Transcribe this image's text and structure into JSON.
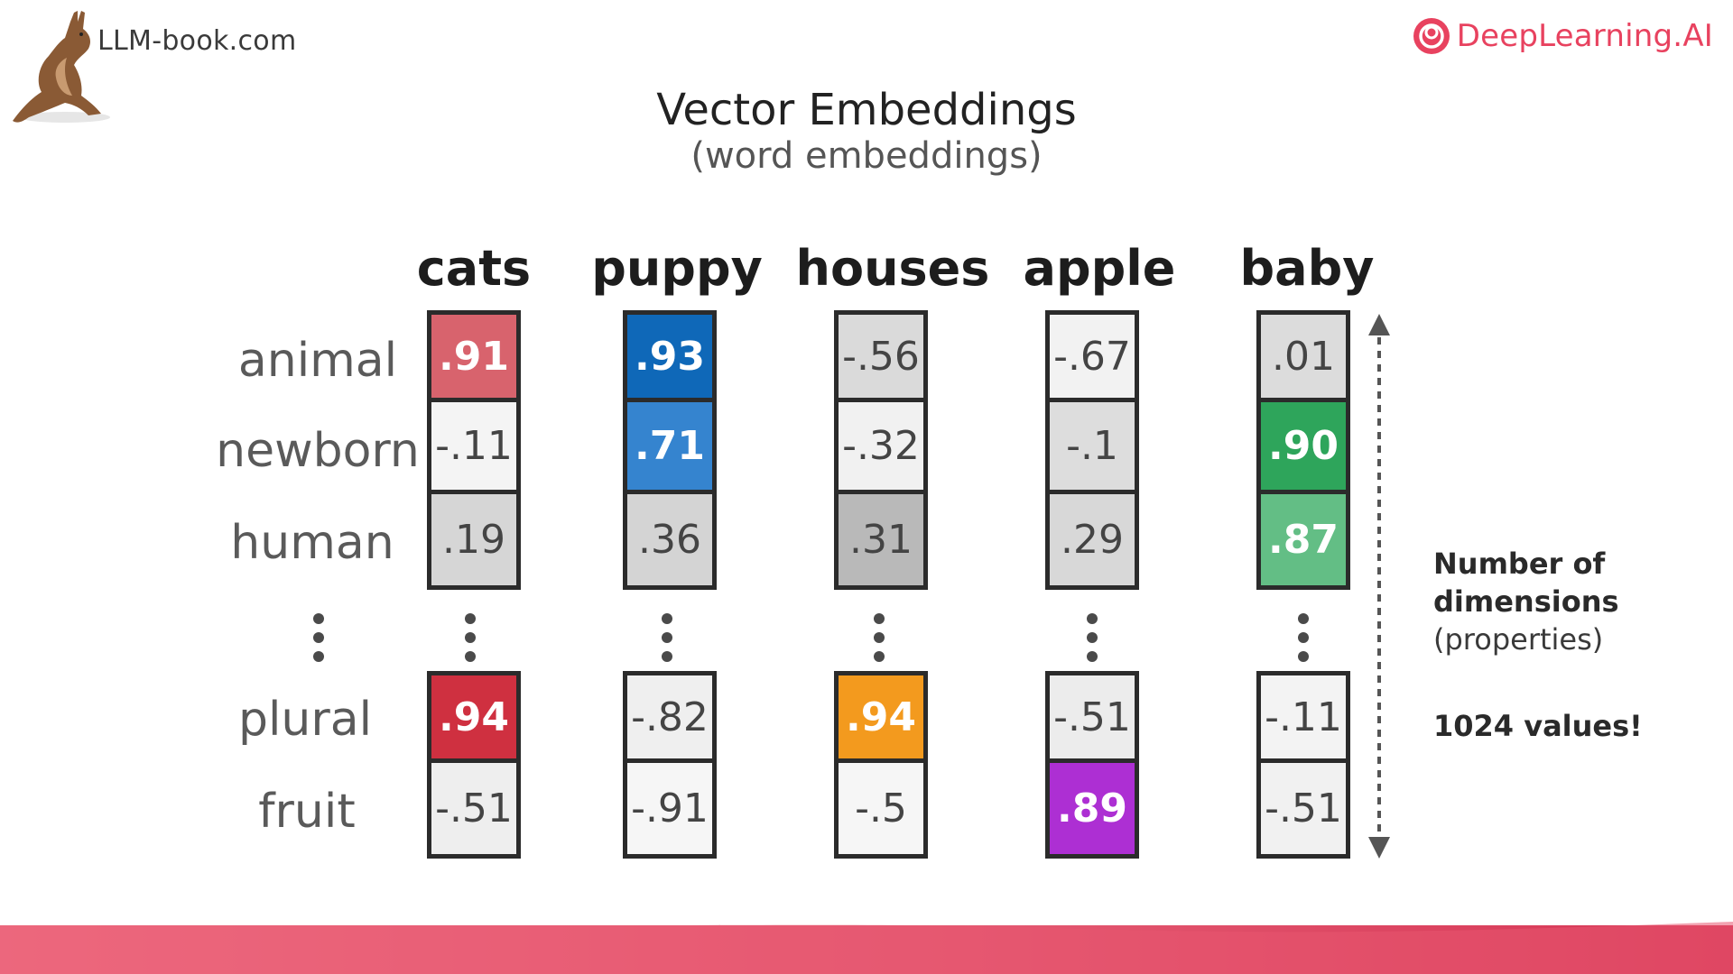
{
  "header": {
    "left_brand": "LLM-book.com",
    "right_brand": "DeepLearning.AI",
    "title": "Vector Embeddings",
    "subtitle": "(word embeddings)"
  },
  "icons": {
    "mascot": "kangaroo-icon",
    "logo": "deeplearning-ai-logo-icon"
  },
  "words": [
    "cats",
    "puppy",
    "houses",
    "apple",
    "baby"
  ],
  "rows": [
    "animal",
    "newborn",
    "human",
    "plural",
    "fruit"
  ],
  "values": {
    "cats": [
      ".91",
      "-.11",
      ".19",
      ".94",
      "-.51"
    ],
    "puppy": [
      ".93",
      ".71",
      ".36",
      "-.82",
      "-.91"
    ],
    "houses": [
      "-.56",
      "-.32",
      ".31",
      ".94",
      "-.5"
    ],
    "apple": [
      "-.67",
      "-.1",
      ".29",
      "-.51",
      ".89"
    ],
    "baby": [
      ".01",
      ".90",
      ".87",
      "-.11",
      "-.51"
    ]
  },
  "cell_colors": {
    "cats": [
      "#d8636d",
      "#f4f4f4",
      "#d6d6d6",
      "#cf3040",
      "#eeeeee"
    ],
    "puppy": [
      "#0f68b8",
      "#3584cf",
      "#d4d4d4",
      "#efefef",
      "#f6f6f6"
    ],
    "houses": [
      "#dadada",
      "#f1f1f1",
      "#b9b9b9",
      "#f39a1e",
      "#f6f6f6"
    ],
    "apple": [
      "#f2f2f2",
      "#dddddd",
      "#d8d8d8",
      "#ececec",
      "#ad2fd3"
    ],
    "baby": [
      "#dcdcdc",
      "#2ea55b",
      "#63be85",
      "#f3f3f3",
      "#f1f1f1"
    ]
  },
  "highlighted": {
    "cats": [
      true,
      false,
      false,
      true,
      false
    ],
    "puppy": [
      true,
      true,
      false,
      false,
      false
    ],
    "houses": [
      false,
      false,
      false,
      true,
      false
    ],
    "apple": [
      false,
      false,
      false,
      false,
      true
    ],
    "baby": [
      false,
      true,
      true,
      false,
      false
    ]
  },
  "dimension_note": {
    "line1": "Number of",
    "line2": "dimensions",
    "line3": "(properties)",
    "count": "1024 values!"
  },
  "colors": {
    "brand_red": "#e8425f",
    "footer_start": "#f27d8e",
    "footer_end": "#d63655"
  }
}
